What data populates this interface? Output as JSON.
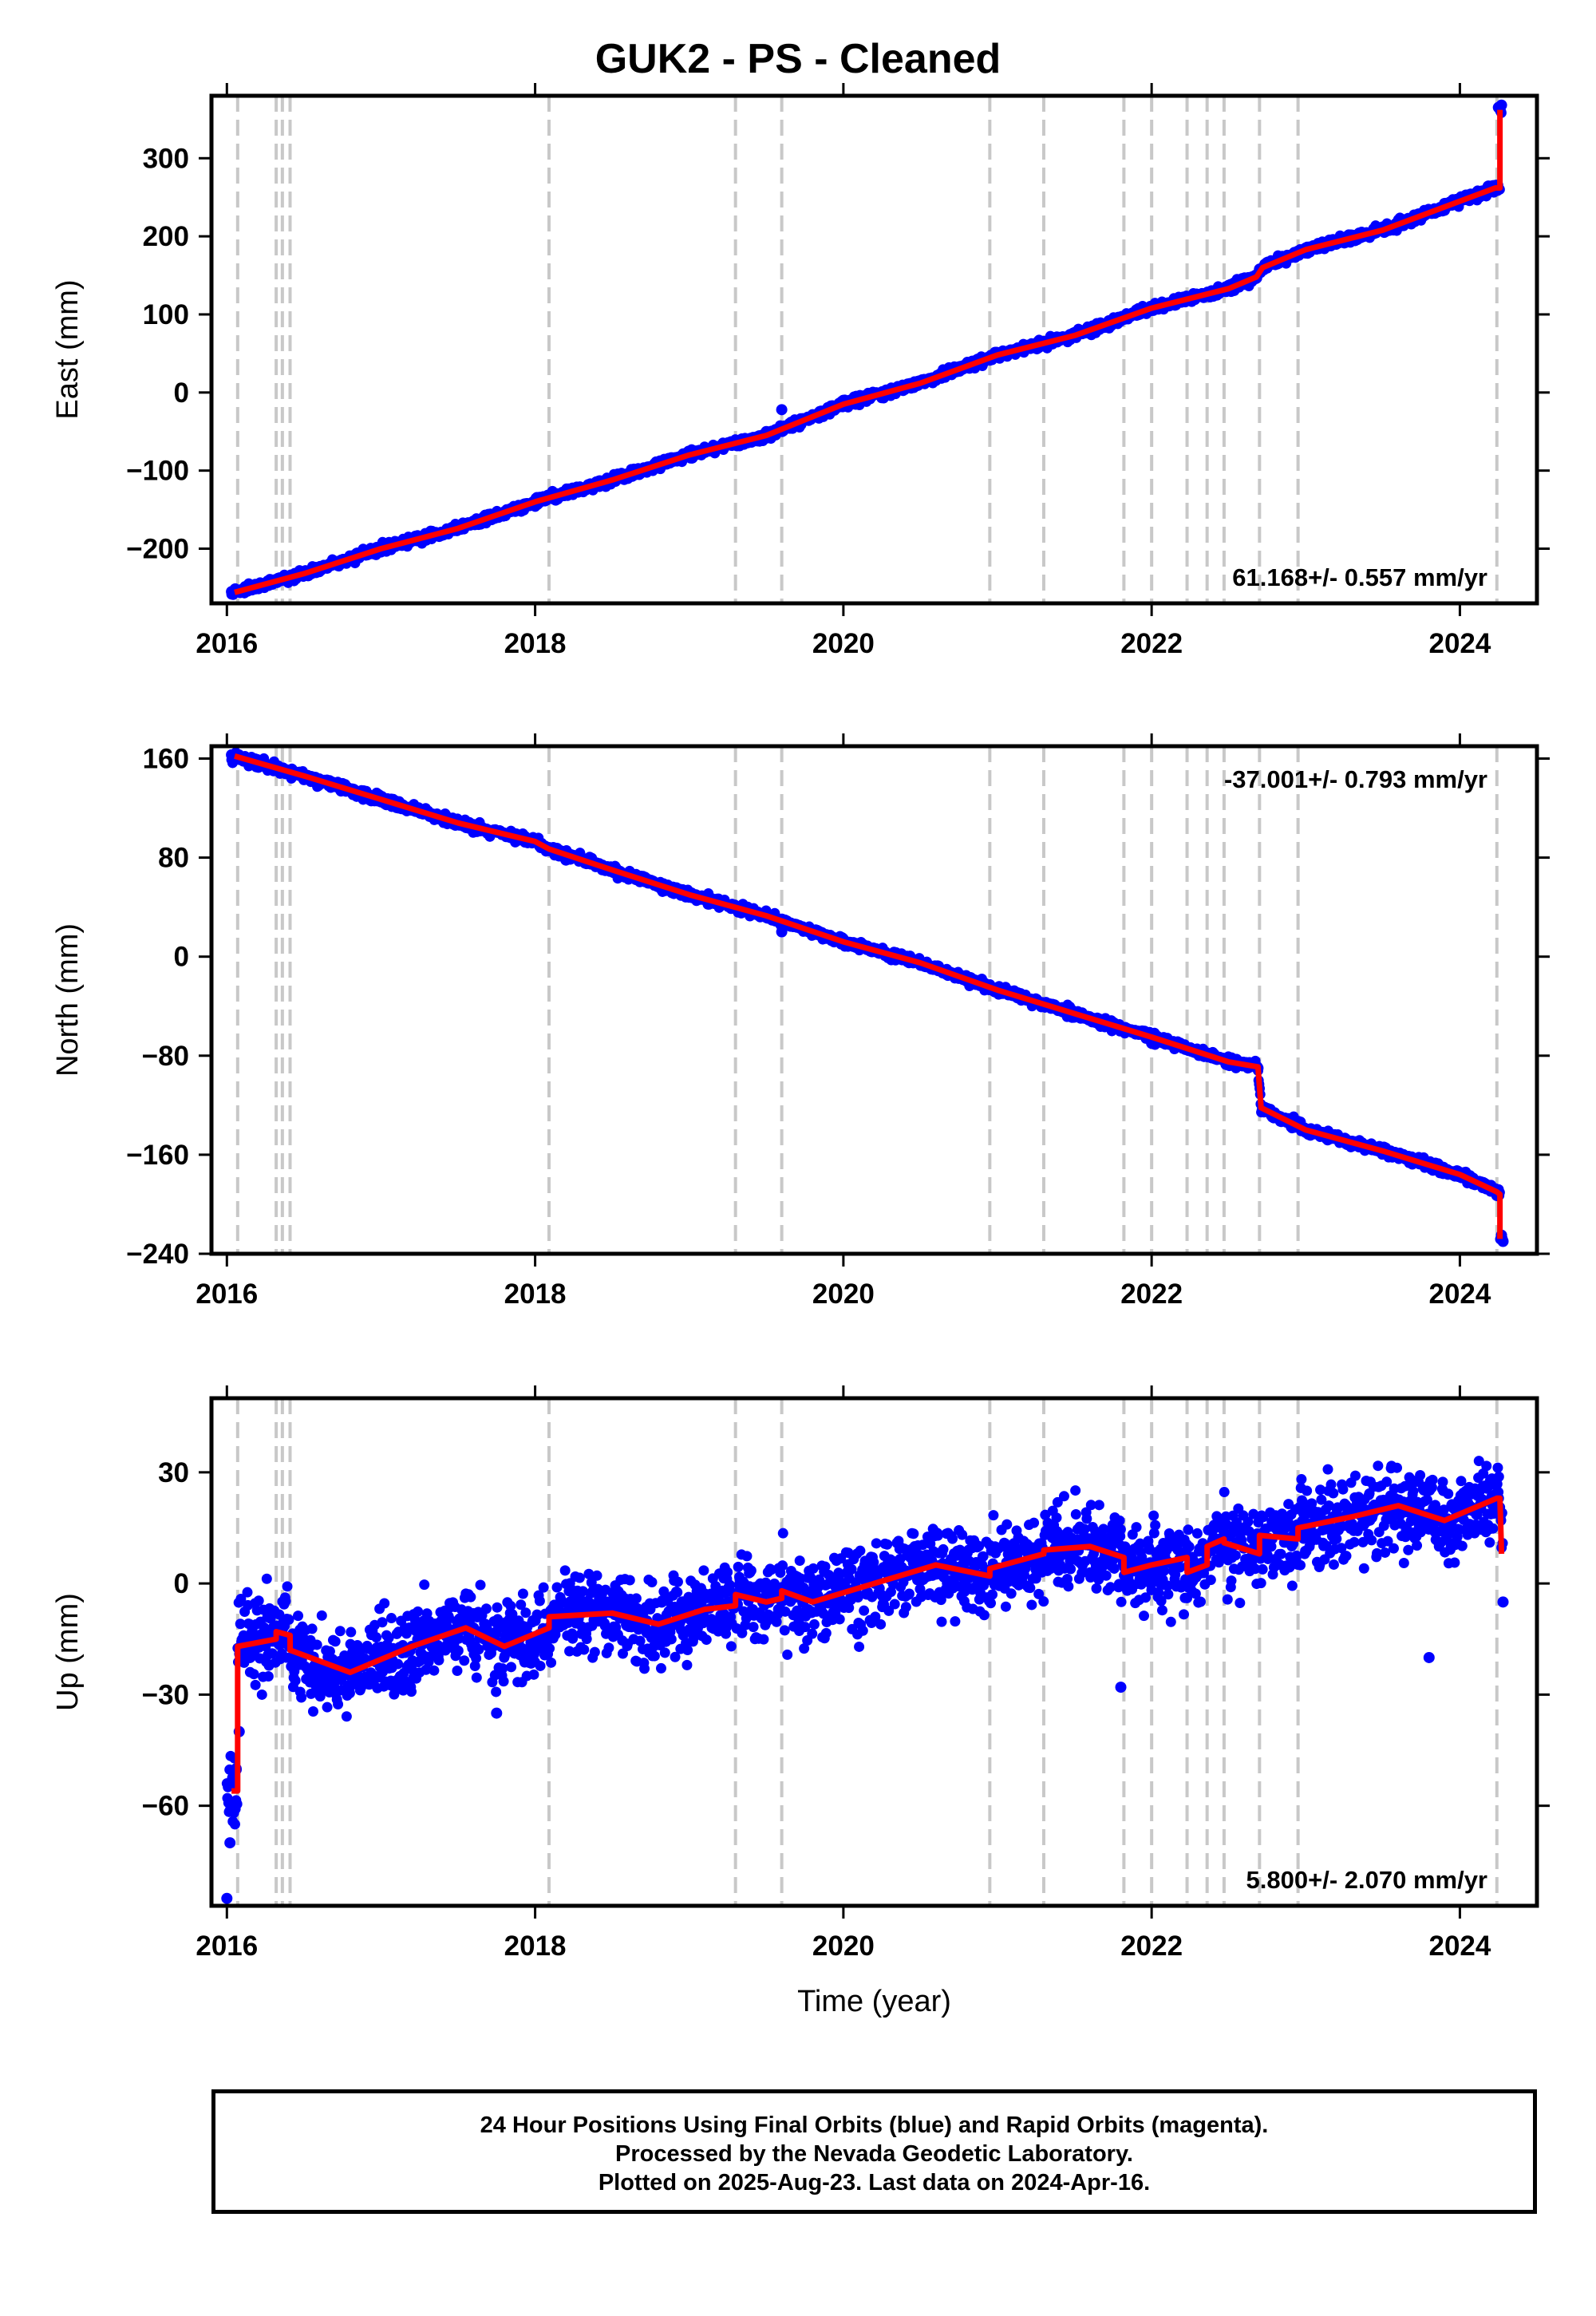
{
  "title": "GUK2  - PS - Cleaned",
  "footer": {
    "line1": "24 Hour Positions Using Final Orbits (blue) and Rapid Orbits (magenta).",
    "line2": "Processed by the Nevada Geodetic Laboratory.",
    "line3": "Plotted on 2025-Aug-23. Last data on 2024-Apr-16."
  },
  "colors": {
    "points": "#0000ff",
    "model": "#ff0000",
    "events": "#c8c8c8",
    "axes": "#000000"
  },
  "chart_data": [
    {
      "type": "scatter",
      "ylabel": "East (mm)",
      "xlabel": "",
      "xlim": [
        2015.9,
        2024.5
      ],
      "ylim": [
        -270,
        380
      ],
      "xticks": [
        2016,
        2018,
        2020,
        2022,
        2024
      ],
      "yticks": [
        -200,
        -100,
        0,
        100,
        200,
        300
      ],
      "ytick_labels": [
        "−200",
        "−100",
        "0",
        "100",
        "200",
        "300"
      ],
      "rate_label": "61.168+/- 0.557 mm/yr",
      "rate_position": "bottom-right",
      "grid": false,
      "event_lines": [
        2016.07,
        2016.32,
        2016.36,
        2016.41,
        2018.09,
        2019.3,
        2019.6,
        2020.95,
        2021.3,
        2021.82,
        2022.0,
        2022.23,
        2022.36,
        2022.47,
        2022.7,
        2022.95,
        2024.24
      ],
      "series": [
        {
          "kind": "points",
          "x": [
            2016.03,
            2016.1,
            2016.3,
            2016.6,
            2017.0,
            2017.5,
            2018.0,
            2018.5,
            2019.0,
            2019.5,
            2019.6,
            2020.0,
            2020.5,
            2021.0,
            2021.5,
            2022.0,
            2022.5,
            2022.7,
            2023.0,
            2023.5,
            2024.0,
            2024.24,
            2024.25,
            2024.27
          ],
          "y": [
            -255,
            -252,
            -243,
            -225,
            -198,
            -175,
            -138,
            -110,
            -78,
            -50,
            -22,
            -10,
            15,
            48,
            72,
            108,
            132,
            158,
            185,
            212,
            245,
            262,
            365,
            368
          ]
        },
        {
          "kind": "model",
          "x": [
            2016.05,
            2016.5,
            2017.0,
            2017.5,
            2018.0,
            2018.5,
            2019.0,
            2019.5,
            2020.0,
            2020.5,
            2021.0,
            2021.5,
            2022.0,
            2022.5,
            2022.68,
            2022.72,
            2023.0,
            2023.5,
            2024.0,
            2024.23,
            2024.26,
            2024.26
          ],
          "y": [
            -256,
            -232,
            -200,
            -174,
            -140,
            -112,
            -80,
            -55,
            -15,
            12,
            48,
            73,
            108,
            133,
            148,
            160,
            183,
            208,
            245,
            262,
            262,
            362
          ]
        }
      ]
    },
    {
      "type": "scatter",
      "ylabel": "North (mm)",
      "xlabel": "",
      "xlim": [
        2015.9,
        2024.5
      ],
      "ylim": [
        -240,
        170
      ],
      "xticks": [
        2016,
        2018,
        2020,
        2022,
        2024
      ],
      "yticks": [
        -240,
        -160,
        -80,
        0,
        80,
        160
      ],
      "ytick_labels": [
        "−240",
        "−160",
        "−80",
        "0",
        "80",
        "160"
      ],
      "rate_label": "-37.001+/- 0.793 mm/yr",
      "rate_position": "top-right",
      "grid": false,
      "event_lines": [
        2016.07,
        2016.32,
        2016.36,
        2016.41,
        2018.09,
        2019.3,
        2019.6,
        2020.95,
        2021.3,
        2021.82,
        2022.0,
        2022.23,
        2022.36,
        2022.47,
        2022.7,
        2022.95,
        2024.24
      ],
      "series": [
        {
          "kind": "points",
          "x": [
            2016.03,
            2016.1,
            2016.5,
            2017.0,
            2017.5,
            2017.9,
            2018.2,
            2018.5,
            2019.0,
            2019.5,
            2019.6,
            2020.0,
            2020.5,
            2021.0,
            2021.5,
            2022.0,
            2022.5,
            2022.69,
            2022.75,
            2023.0,
            2023.5,
            2024.0,
            2024.24,
            2024.27,
            2024.28
          ],
          "y": [
            163,
            160,
            143,
            125,
            108,
            96,
            78,
            70,
            50,
            33,
            20,
            14,
            -5,
            -25,
            -45,
            -70,
            -87,
            -90,
            -124,
            -142,
            -156,
            -175,
            -193,
            -225,
            -230
          ]
        },
        {
          "kind": "model",
          "x": [
            2016.05,
            2016.5,
            2017.0,
            2017.5,
            2018.0,
            2018.09,
            2018.5,
            2019.0,
            2019.5,
            2020.0,
            2020.5,
            2021.0,
            2021.5,
            2022.0,
            2022.5,
            2022.69,
            2022.71,
            2023.0,
            2023.5,
            2024.0,
            2024.24,
            2024.26,
            2024.26
          ],
          "y": [
            162,
            146,
            127,
            108,
            93,
            87,
            70,
            50,
            33,
            12,
            -5,
            -27,
            -46,
            -65,
            -85,
            -89,
            -122,
            -140,
            -157,
            -176,
            -190,
            -192,
            -228
          ]
        }
      ]
    },
    {
      "type": "scatter",
      "ylabel": "Up (mm)",
      "xlabel": "Time (year)",
      "xlim": [
        2015.9,
        2024.5
      ],
      "ylim": [
        -87,
        50
      ],
      "xticks": [
        2016,
        2018,
        2020,
        2022,
        2024
      ],
      "yticks": [
        -60,
        -30,
        0,
        30
      ],
      "ytick_labels": [
        "−60",
        "−30",
        "0",
        "30"
      ],
      "rate_label": "5.800+/- 2.070 mm/yr",
      "rate_position": "bottom-right",
      "grid": false,
      "event_lines": [
        2016.07,
        2016.32,
        2016.36,
        2016.41,
        2018.09,
        2019.3,
        2019.6,
        2020.95,
        2021.3,
        2021.82,
        2022.0,
        2022.23,
        2022.36,
        2022.47,
        2022.7,
        2022.95,
        2024.24
      ],
      "series": [
        {
          "kind": "points",
          "x": [
            2016.0,
            2016.02,
            2016.04,
            2016.06,
            2016.08,
            2016.15,
            2016.3,
            2016.5,
            2016.8,
            2017.2,
            2017.6,
            2017.75,
            2018.0,
            2018.3,
            2018.6,
            2019.0,
            2019.5,
            2020.0,
            2020.5,
            2021.0,
            2021.5,
            2021.8,
            2022.0,
            2022.5,
            2023.0,
            2023.5,
            2023.8,
            2024.0,
            2024.25,
            2024.28
          ],
          "y": [
            -85,
            -70,
            -60,
            -50,
            -40,
            -20,
            -12,
            -18,
            -24,
            -17,
            -12,
            -35,
            -10,
            -8,
            -5,
            -7,
            -2,
            0,
            5,
            2,
            10,
            -28,
            5,
            10,
            15,
            20,
            -20,
            20,
            23,
            -5
          ]
        },
        {
          "kind": "model",
          "x": [
            2016.03,
            2016.07,
            2016.07,
            2016.32,
            2016.32,
            2016.41,
            2016.41,
            2016.8,
            2017.2,
            2017.55,
            2017.8,
            2018.09,
            2018.09,
            2018.5,
            2018.8,
            2019.1,
            2019.3,
            2019.3,
            2019.5,
            2019.6,
            2019.6,
            2019.8,
            2020.2,
            2020.6,
            2020.95,
            2020.95,
            2021.3,
            2021.3,
            2021.6,
            2021.82,
            2021.82,
            2022.0,
            2022.23,
            2022.23,
            2022.36,
            2022.36,
            2022.47,
            2022.47,
            2022.7,
            2022.7,
            2022.95,
            2022.95,
            2023.3,
            2023.6,
            2023.9,
            2024.24,
            2024.26,
            2024.27
          ],
          "y": [
            -56,
            -56,
            -17,
            -15,
            -13,
            -14,
            -18,
            -24,
            -17,
            -12,
            -17,
            -12,
            -9,
            -8,
            -11,
            -7,
            -6,
            -3,
            -5,
            -4,
            -2,
            -5,
            0,
            5,
            2,
            4,
            8,
            9,
            10,
            7,
            3,
            5,
            7,
            3,
            5,
            10,
            12,
            11,
            8,
            13,
            12,
            15,
            18,
            21,
            17,
            23,
            23,
            8
          ]
        }
      ]
    }
  ]
}
